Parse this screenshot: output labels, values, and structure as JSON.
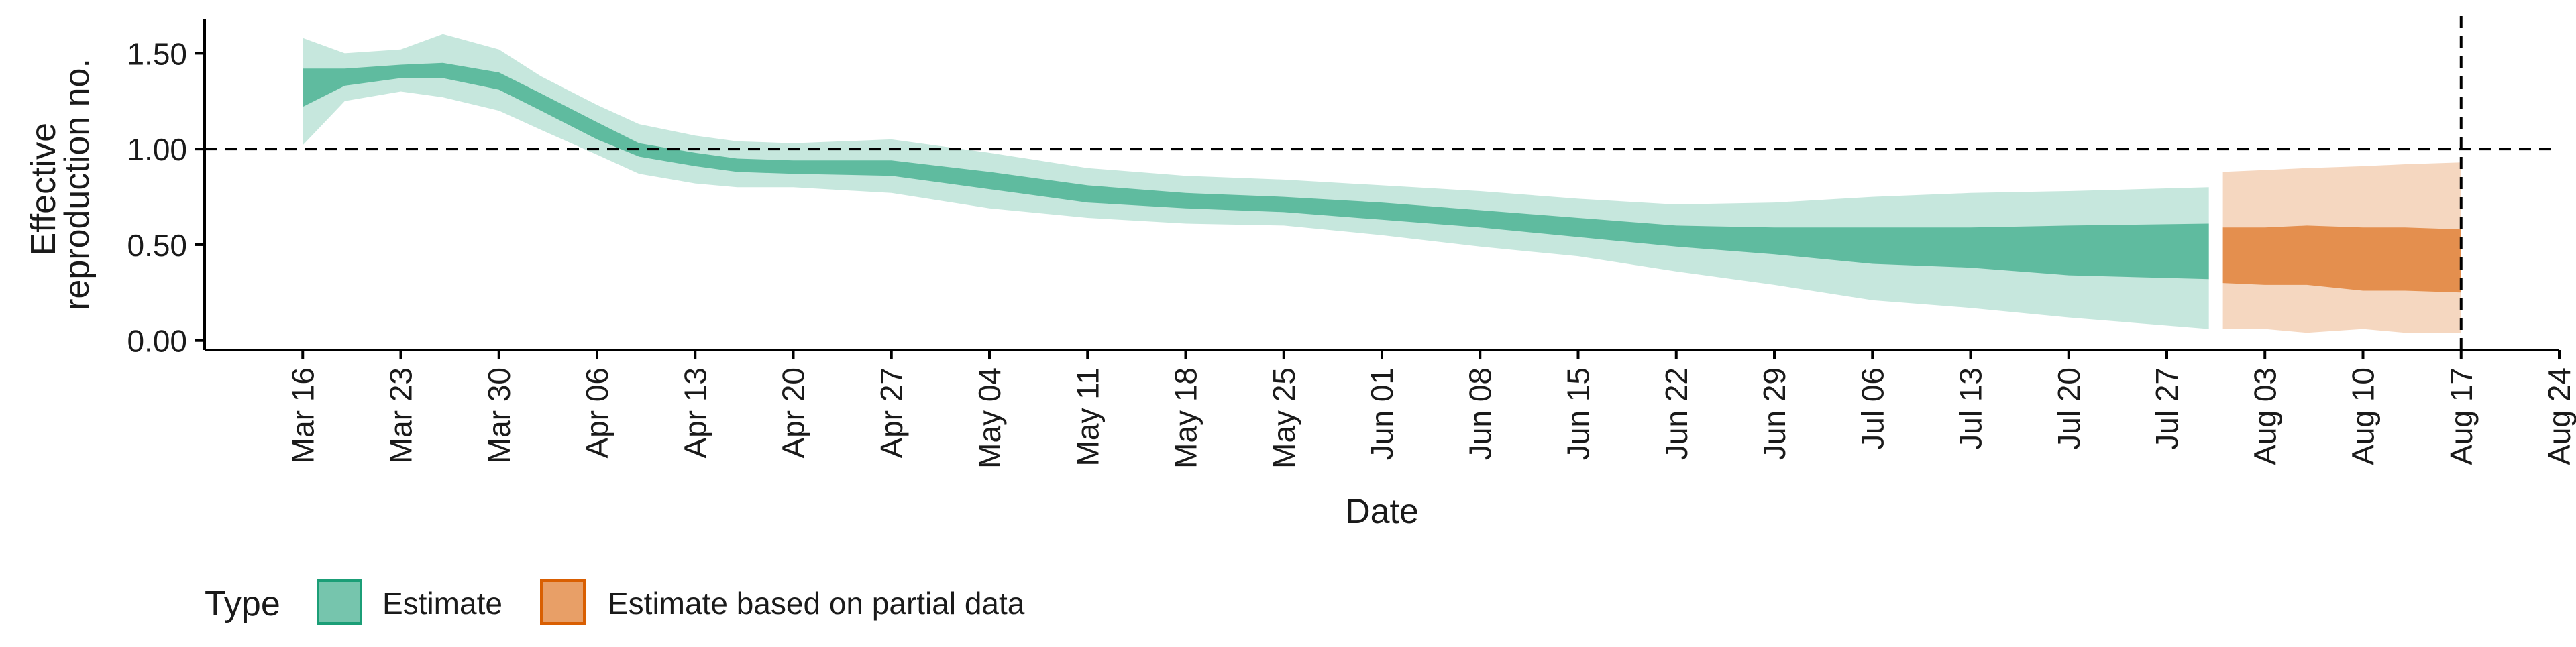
{
  "chart_data": {
    "type": "area",
    "xlabel": "Date",
    "ylabel_lines": [
      "Effective",
      "reproduction no."
    ],
    "x_range": [
      "2020-03-09",
      "2020-08-24"
    ],
    "ylim": [
      -0.05,
      1.68
    ],
    "y_ticks": [
      0.0,
      0.5,
      1.0,
      1.5
    ],
    "y_tick_labels": [
      "0.00",
      "0.50",
      "1.00",
      "1.50"
    ],
    "x_ticks": [
      "2020-03-16",
      "2020-03-23",
      "2020-03-30",
      "2020-04-06",
      "2020-04-13",
      "2020-04-20",
      "2020-04-27",
      "2020-05-04",
      "2020-05-11",
      "2020-05-18",
      "2020-05-25",
      "2020-06-01",
      "2020-06-08",
      "2020-06-15",
      "2020-06-22",
      "2020-06-29",
      "2020-07-06",
      "2020-07-13",
      "2020-07-20",
      "2020-07-27",
      "2020-08-03",
      "2020-08-10",
      "2020-08-17",
      "2020-08-24"
    ],
    "x_tick_labels": [
      "Mar 16",
      "Mar 23",
      "Mar 30",
      "Apr 06",
      "Apr 13",
      "Apr 20",
      "Apr 27",
      "May 04",
      "May 11",
      "May 18",
      "May 25",
      "Jun 01",
      "Jun 08",
      "Jun 15",
      "Jun 22",
      "Jun 29",
      "Jul 06",
      "Jul 13",
      "Jul 20",
      "Jul 27",
      "Aug 03",
      "Aug 10",
      "Aug 17",
      "Aug 24"
    ],
    "reference_lines": {
      "horizontal_y": 1.0,
      "vertical_x": "2020-08-17",
      "style": "dashed"
    },
    "grid": false,
    "legend": {
      "title": "Type",
      "position": "bottom-left",
      "items": [
        {
          "label": "Estimate",
          "color": "#1b9e77"
        },
        {
          "label": "Estimate based on partial data",
          "color": "#d95f02"
        }
      ]
    },
    "series": [
      {
        "name": "Estimate",
        "fill_color": "#1b9e77",
        "x": [
          "2020-03-16",
          "2020-03-19",
          "2020-03-23",
          "2020-03-26",
          "2020-03-30",
          "2020-04-02",
          "2020-04-06",
          "2020-04-09",
          "2020-04-13",
          "2020-04-16",
          "2020-04-20",
          "2020-04-27",
          "2020-05-04",
          "2020-05-11",
          "2020-05-18",
          "2020-05-25",
          "2020-06-01",
          "2020-06-08",
          "2020-06-15",
          "2020-06-22",
          "2020-06-29",
          "2020-07-06",
          "2020-07-13",
          "2020-07-20",
          "2020-07-30"
        ],
        "lower90": [
          1.02,
          1.25,
          1.3,
          1.27,
          1.2,
          1.1,
          0.97,
          0.87,
          0.82,
          0.8,
          0.8,
          0.77,
          0.69,
          0.64,
          0.61,
          0.6,
          0.55,
          0.49,
          0.44,
          0.36,
          0.29,
          0.21,
          0.17,
          0.12,
          0.06
        ],
        "lower50": [
          1.22,
          1.33,
          1.37,
          1.37,
          1.31,
          1.2,
          1.05,
          0.96,
          0.91,
          0.88,
          0.87,
          0.86,
          0.79,
          0.72,
          0.69,
          0.67,
          0.63,
          0.59,
          0.54,
          0.49,
          0.45,
          0.4,
          0.38,
          0.34,
          0.32
        ],
        "upper50": [
          1.42,
          1.42,
          1.44,
          1.45,
          1.4,
          1.29,
          1.14,
          1.03,
          0.98,
          0.95,
          0.94,
          0.94,
          0.88,
          0.81,
          0.77,
          0.75,
          0.72,
          0.68,
          0.64,
          0.6,
          0.59,
          0.59,
          0.59,
          0.6,
          0.61
        ],
        "upper90": [
          1.58,
          1.5,
          1.52,
          1.6,
          1.52,
          1.38,
          1.23,
          1.13,
          1.07,
          1.04,
          1.03,
          1.05,
          0.98,
          0.9,
          0.86,
          0.84,
          0.81,
          0.78,
          0.74,
          0.71,
          0.72,
          0.75,
          0.77,
          0.78,
          0.8
        ]
      },
      {
        "name": "Estimate based on partial data",
        "fill_color": "#d95f02",
        "x": [
          "2020-07-31",
          "2020-08-03",
          "2020-08-06",
          "2020-08-10",
          "2020-08-13",
          "2020-08-17"
        ],
        "lower90": [
          0.06,
          0.06,
          0.04,
          0.06,
          0.04,
          0.04
        ],
        "lower50": [
          0.3,
          0.29,
          0.29,
          0.26,
          0.26,
          0.25
        ],
        "upper50": [
          0.59,
          0.59,
          0.6,
          0.59,
          0.59,
          0.58
        ],
        "upper90": [
          0.88,
          0.89,
          0.9,
          0.91,
          0.92,
          0.93
        ]
      }
    ]
  }
}
